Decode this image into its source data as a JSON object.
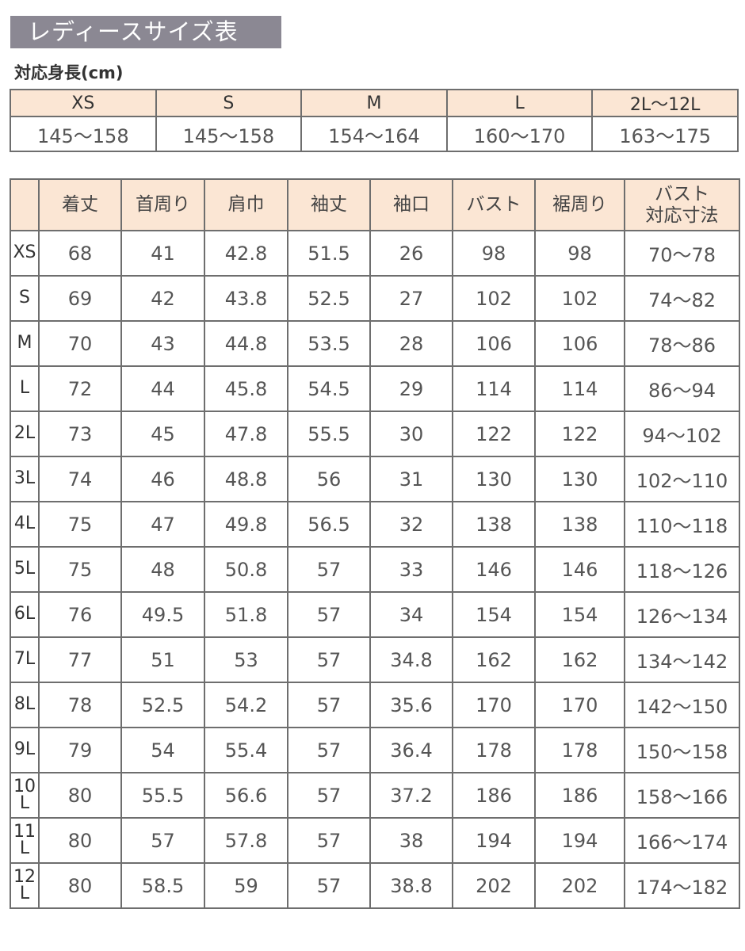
{
  "title": "レディースサイズ表",
  "height_label": "対応身長(cm)",
  "height_table": {
    "sizes": [
      "XS",
      "S",
      "M",
      "L",
      "2L〜12L"
    ],
    "ranges": [
      "145〜158",
      "145〜158",
      "154〜164",
      "160〜170",
      "163〜175"
    ]
  },
  "size_table": {
    "headers": [
      "",
      "着丈",
      "首周り",
      "肩巾",
      "袖丈",
      "袖口",
      "バスト",
      "裾周り",
      "バスト\n対応寸法"
    ],
    "rows": [
      [
        "XS",
        "68",
        "41",
        "42.8",
        "51.5",
        "26",
        "98",
        "98",
        "70〜78"
      ],
      [
        "S",
        "69",
        "42",
        "43.8",
        "52.5",
        "27",
        "102",
        "102",
        "74〜82"
      ],
      [
        "M",
        "70",
        "43",
        "44.8",
        "53.5",
        "28",
        "106",
        "106",
        "78〜86"
      ],
      [
        "L",
        "72",
        "44",
        "45.8",
        "54.5",
        "29",
        "114",
        "114",
        "86〜94"
      ],
      [
        "2L",
        "73",
        "45",
        "47.8",
        "55.5",
        "30",
        "122",
        "122",
        "94〜102"
      ],
      [
        "3L",
        "74",
        "46",
        "48.8",
        "56",
        "31",
        "130",
        "130",
        "102〜110"
      ],
      [
        "4L",
        "75",
        "47",
        "49.8",
        "56.5",
        "32",
        "138",
        "138",
        "110〜118"
      ],
      [
        "5L",
        "75",
        "48",
        "50.8",
        "57",
        "33",
        "146",
        "146",
        "118〜126"
      ],
      [
        "6L",
        "76",
        "49.5",
        "51.8",
        "57",
        "34",
        "154",
        "154",
        "126〜134"
      ],
      [
        "7L",
        "77",
        "51",
        "53",
        "57",
        "34.8",
        "162",
        "162",
        "134〜142"
      ],
      [
        "8L",
        "78",
        "52.5",
        "54.2",
        "57",
        "35.6",
        "170",
        "170",
        "142〜150"
      ],
      [
        "9L",
        "79",
        "54",
        "55.4",
        "57",
        "36.4",
        "178",
        "178",
        "150〜158"
      ],
      [
        "10L",
        "80",
        "55.5",
        "56.6",
        "57",
        "37.2",
        "186",
        "186",
        "158〜166"
      ],
      [
        "11L",
        "80",
        "57",
        "57.8",
        "57",
        "38",
        "194",
        "194",
        "166〜174"
      ],
      [
        "12L",
        "80",
        "58.5",
        "59",
        "57",
        "38.8",
        "202",
        "202",
        "174〜182"
      ]
    ]
  }
}
